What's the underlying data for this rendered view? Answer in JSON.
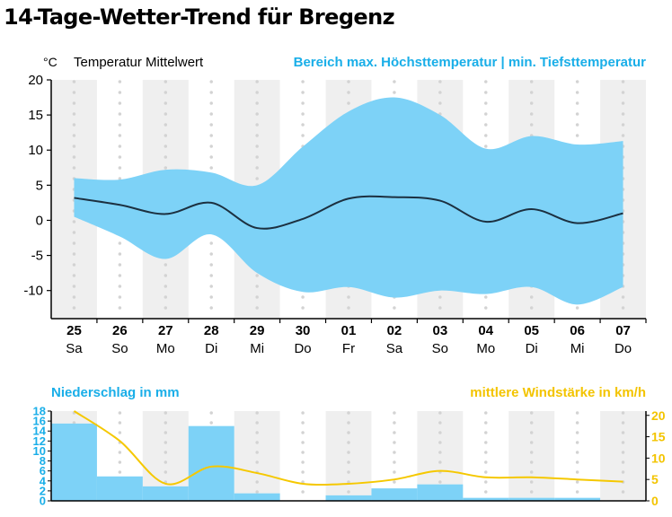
{
  "page": {
    "title": "14-Tage-Wetter-Trend für Bregenz"
  },
  "colors": {
    "range_fill": "#7dd2f7",
    "mean_line": "#1c3040",
    "precip_bar": "#7dd2f7",
    "wind_line": "#f5c800",
    "blue_text": "#19aee8",
    "yellow_text": "#f3c400",
    "stripe": "#efefef",
    "dots": "#d3d3d3"
  },
  "chart_data": [
    {
      "type": "area",
      "unit": "°C",
      "series_labels": {
        "mean": "Temperatur Mittelwert",
        "range": "Bereich max. Höchsttemperatur | min. Tiefsttemperatur"
      },
      "categories": [
        "25",
        "26",
        "27",
        "28",
        "29",
        "30",
        "01",
        "02",
        "03",
        "04",
        "05",
        "06",
        "07"
      ],
      "weekdays": [
        "Sa",
        "So",
        "Mo",
        "Di",
        "Mi",
        "Do",
        "Fr",
        "Sa",
        "So",
        "Mo",
        "Di",
        "Mi",
        "Do"
      ],
      "ylim": [
        -14,
        20
      ],
      "yticks": [
        20,
        15,
        10,
        5,
        0,
        -5,
        -10
      ],
      "max": [
        6,
        5.8,
        7.2,
        6.8,
        5,
        10.5,
        15.5,
        17.5,
        15,
        10.2,
        12,
        10.8,
        11.3
      ],
      "min": [
        0.5,
        -2.3,
        -5.5,
        -2,
        -7.5,
        -10.2,
        -9.5,
        -11,
        -10,
        -10.5,
        -9.5,
        -12,
        -9.5
      ],
      "mean": [
        3.2,
        2.2,
        0.9,
        2.5,
        -1.1,
        0.2,
        3.1,
        3.3,
        2.8,
        -0.2,
        1.6,
        -0.4,
        1.0
      ]
    },
    {
      "type": "bar",
      "title_left": "Niederschlag in mm",
      "title_right": "mittlere Windstärke in km/h",
      "categories": [
        "25",
        "26",
        "27",
        "28",
        "29",
        "30",
        "01",
        "02",
        "03",
        "04",
        "05",
        "06",
        "07"
      ],
      "precipitation": [
        15.5,
        4.9,
        2.9,
        15,
        1.5,
        0,
        1.1,
        2.5,
        3.3,
        0.6,
        0.6,
        0.6,
        0
      ],
      "wind": [
        21,
        14,
        4,
        8,
        6.5,
        4,
        4,
        5,
        7,
        5.5,
        5.5,
        5,
        4.5
      ],
      "ylim_precip": [
        0,
        18
      ],
      "yticks_precip": [
        0,
        2,
        4,
        6,
        8,
        10,
        12,
        14,
        16,
        18
      ],
      "ylim_wind": [
        0,
        21
      ],
      "yticks_wind": [
        0,
        5,
        10,
        15,
        20
      ]
    }
  ]
}
